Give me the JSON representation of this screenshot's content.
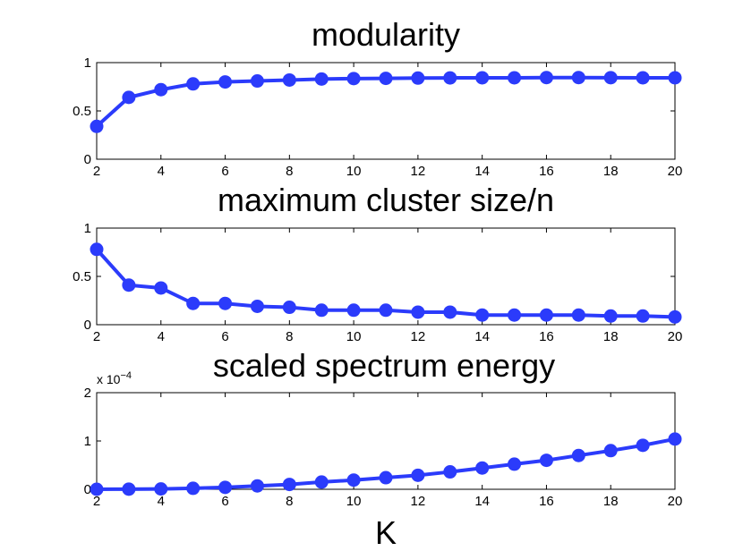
{
  "chart_data": [
    {
      "type": "line",
      "title": "modularity",
      "xlabel": "",
      "ylabel": "",
      "x": [
        2,
        3,
        4,
        5,
        6,
        7,
        8,
        9,
        10,
        11,
        12,
        13,
        14,
        15,
        16,
        17,
        18,
        19,
        20
      ],
      "values": [
        0.34,
        0.64,
        0.72,
        0.78,
        0.8,
        0.81,
        0.82,
        0.83,
        0.835,
        0.837,
        0.84,
        0.842,
        0.843,
        0.843,
        0.845,
        0.845,
        0.844,
        0.843,
        0.843
      ],
      "xlim": [
        2,
        20
      ],
      "ylim": [
        0,
        1
      ],
      "xticks": [
        "2",
        "4",
        "6",
        "8",
        "10",
        "12",
        "14",
        "16",
        "18",
        "20"
      ],
      "yticks": [
        "0",
        "0.5",
        "1"
      ],
      "grid": false,
      "color": "#2b3bfb"
    },
    {
      "type": "line",
      "title": "maximum cluster size/n",
      "xlabel": "",
      "ylabel": "",
      "x": [
        2,
        3,
        4,
        5,
        6,
        7,
        8,
        9,
        10,
        11,
        12,
        13,
        14,
        15,
        16,
        17,
        18,
        19,
        20
      ],
      "values": [
        0.78,
        0.41,
        0.38,
        0.22,
        0.22,
        0.19,
        0.18,
        0.15,
        0.15,
        0.15,
        0.13,
        0.13,
        0.1,
        0.1,
        0.1,
        0.1,
        0.09,
        0.09,
        0.08
      ],
      "xlim": [
        2,
        20
      ],
      "ylim": [
        0,
        1
      ],
      "xticks": [
        "2",
        "4",
        "6",
        "8",
        "10",
        "12",
        "14",
        "16",
        "18",
        "20"
      ],
      "yticks": [
        "0",
        "0.5",
        "1"
      ],
      "grid": false,
      "color": "#2b3bfb"
    },
    {
      "type": "line",
      "title": "scaled spectrum energy",
      "xlabel": "K",
      "ylabel": "",
      "scale_label": "x 10",
      "scale_exponent": "−4",
      "x": [
        2,
        3,
        4,
        5,
        6,
        7,
        8,
        9,
        10,
        11,
        12,
        13,
        14,
        15,
        16,
        17,
        18,
        19,
        20
      ],
      "values": [
        0.0,
        0.003,
        0.007,
        0.02,
        0.04,
        0.07,
        0.1,
        0.15,
        0.19,
        0.24,
        0.29,
        0.36,
        0.44,
        0.52,
        0.6,
        0.7,
        0.8,
        0.91,
        1.04
      ],
      "xlim": [
        2,
        20
      ],
      "ylim": [
        0,
        2
      ],
      "xticks": [
        "2",
        "4",
        "6",
        "8",
        "10",
        "12",
        "14",
        "16",
        "18",
        "20"
      ],
      "yticks": [
        "0",
        "1",
        "2"
      ],
      "grid": false,
      "color": "#2b3bfb"
    }
  ]
}
